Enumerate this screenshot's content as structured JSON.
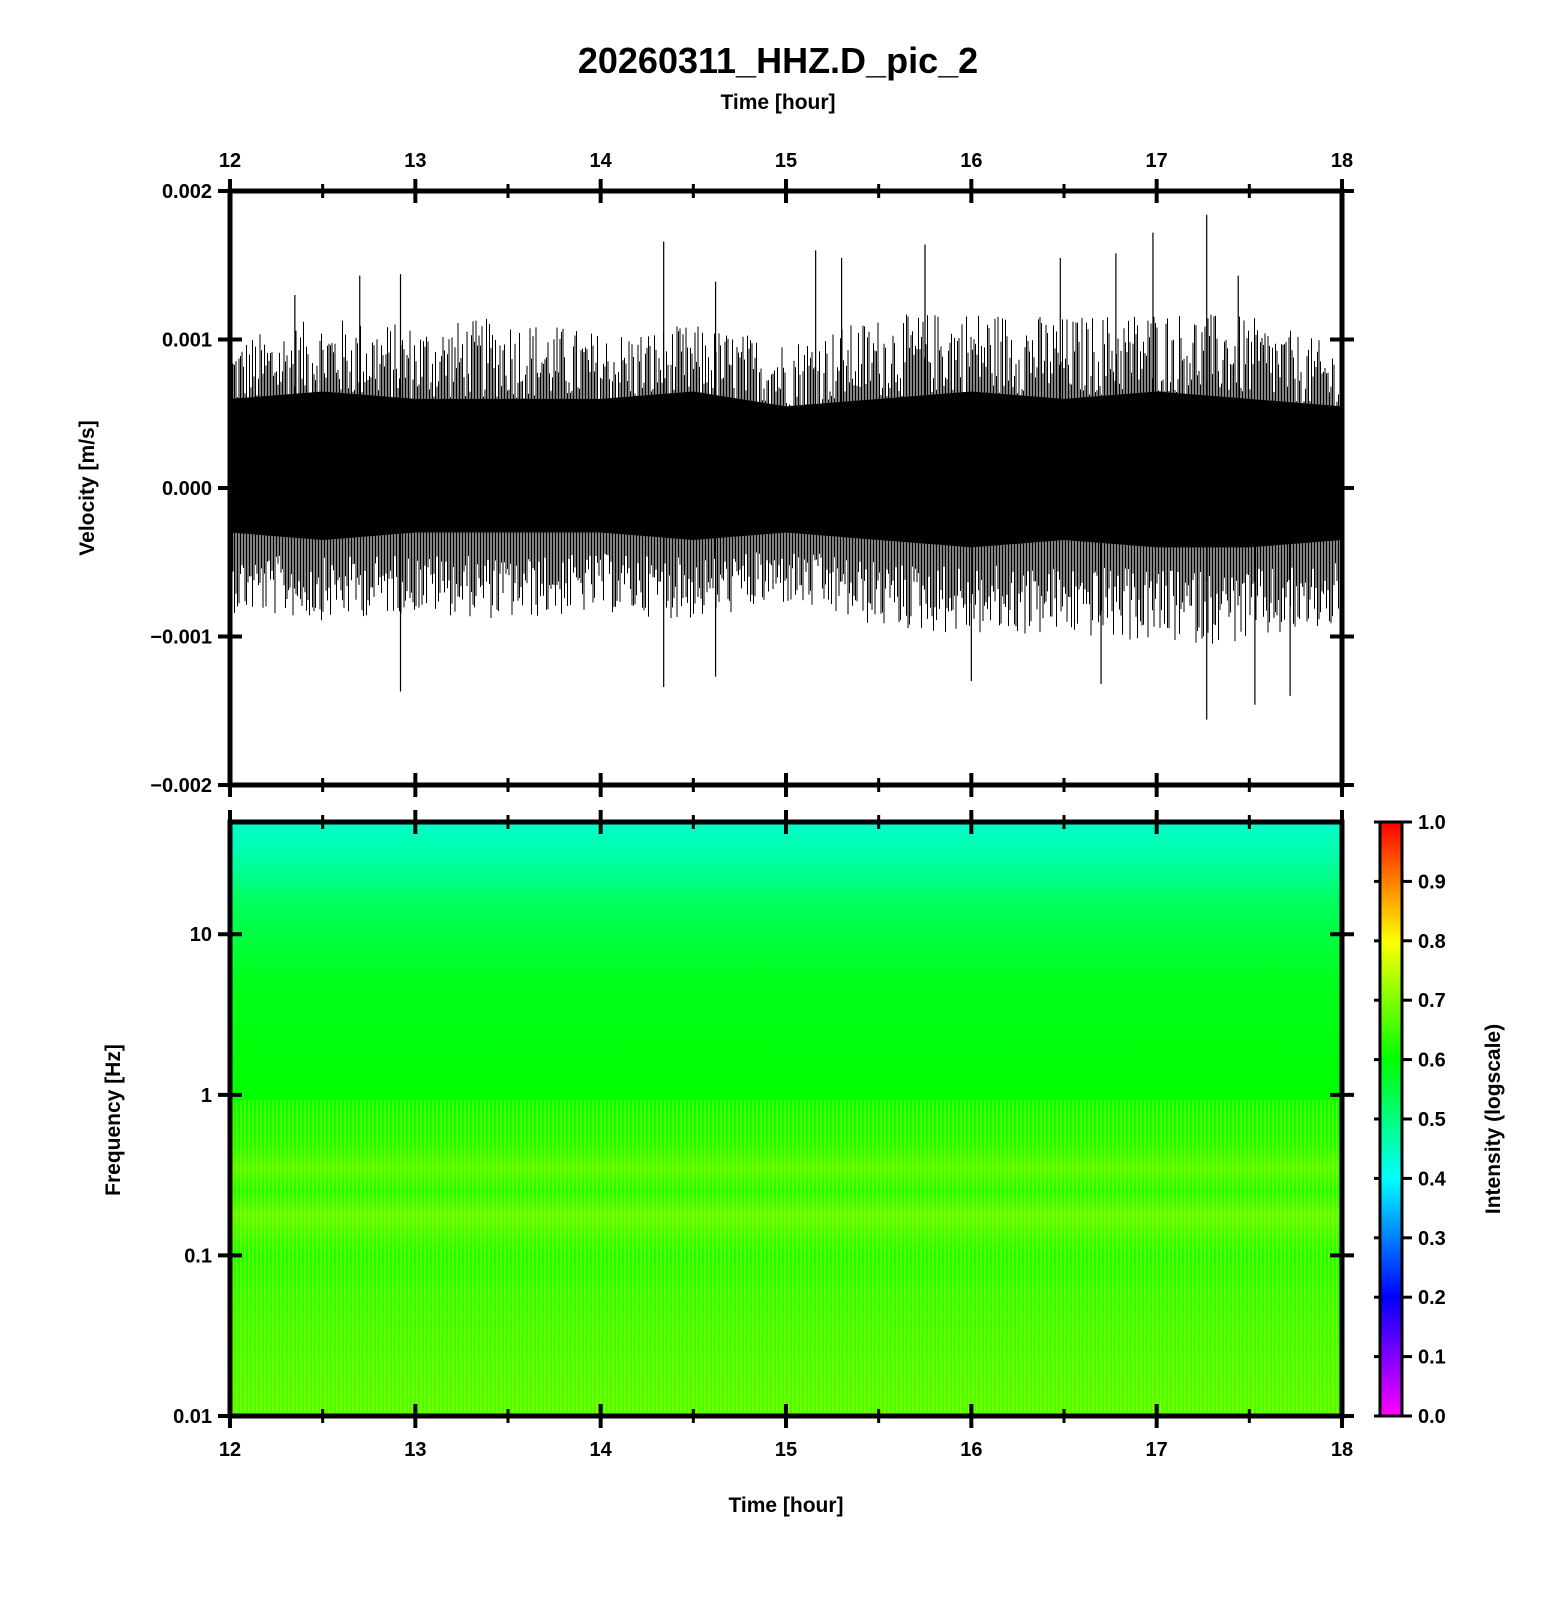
{
  "chart_data": [
    {
      "type": "line",
      "panel": "waveform",
      "title": "20260311_HHZ.D_pic_2",
      "top_xlabel": "Time [hour]",
      "ylabel": "Velocity [m/s]",
      "xlim": [
        12,
        18
      ],
      "ylim": [
        -0.002,
        0.002
      ],
      "x_ticks": [
        "12",
        "13",
        "14",
        "15",
        "16",
        "17",
        "18"
      ],
      "y_ticks": [
        "−0.002",
        "−0.001",
        "0.000",
        "0.001",
        "0.002"
      ],
      "y_tick_values": [
        -0.002,
        -0.001,
        0,
        0.001,
        0.002
      ],
      "series": [
        {
          "x": [
            12.0,
            12.5,
            13.0,
            13.5,
            14.0,
            14.5,
            15.0,
            15.5,
            16.0,
            16.5,
            17.0,
            17.5,
            18.0
          ],
          "envelope_upper": [
            0.00095,
            0.0011,
            0.00105,
            0.0011,
            0.001,
            0.00105,
            0.00095,
            0.0011,
            0.00115,
            0.0011,
            0.00115,
            0.0011,
            0.0009
          ],
          "envelope_lower": [
            -0.0008,
            -0.00085,
            -0.0008,
            -0.00085,
            -0.0008,
            -0.00085,
            -0.00075,
            -0.0009,
            -0.00095,
            -0.00095,
            -0.001,
            -0.001,
            -0.0009
          ],
          "core_upper": [
            0.0006,
            0.00065,
            0.0006,
            0.0006,
            0.0006,
            0.00065,
            0.00055,
            0.0006,
            0.00065,
            0.0006,
            0.00065,
            0.0006,
            0.00055
          ],
          "core_lower": [
            -0.0003,
            -0.00035,
            -0.0003,
            -0.0003,
            -0.0003,
            -0.00035,
            -0.0003,
            -0.00035,
            -0.0004,
            -0.00035,
            -0.0004,
            -0.0004,
            -0.00035
          ],
          "peaks_high": [
            {
              "x": 12.35,
              "y": 0.0013
            },
            {
              "x": 12.7,
              "y": 0.00143
            },
            {
              "x": 12.92,
              "y": 0.00144
            },
            {
              "x": 14.34,
              "y": 0.00166
            },
            {
              "x": 14.62,
              "y": 0.00139
            },
            {
              "x": 15.16,
              "y": 0.0016
            },
            {
              "x": 15.3,
              "y": 0.00155
            },
            {
              "x": 15.75,
              "y": 0.00164
            },
            {
              "x": 16.48,
              "y": 0.00155
            },
            {
              "x": 16.78,
              "y": 0.00158
            },
            {
              "x": 16.98,
              "y": 0.00172
            },
            {
              "x": 17.27,
              "y": 0.00184
            },
            {
              "x": 17.44,
              "y": 0.00143
            }
          ],
          "peaks_low": [
            {
              "x": 12.92,
              "y": -0.00137
            },
            {
              "x": 14.34,
              "y": -0.00134
            },
            {
              "x": 14.62,
              "y": -0.00127
            },
            {
              "x": 16.0,
              "y": -0.0013
            },
            {
              "x": 16.7,
              "y": -0.00132
            },
            {
              "x": 17.27,
              "y": -0.00156
            },
            {
              "x": 17.53,
              "y": -0.00146
            },
            {
              "x": 17.72,
              "y": -0.0014
            }
          ]
        }
      ]
    },
    {
      "type": "heatmap",
      "panel": "spectrogram",
      "xlabel": "Time [hour]",
      "ylabel": "Frequency [Hz]",
      "xlim": [
        12,
        18
      ],
      "ylim": [
        0.01,
        50
      ],
      "y_scale": "log",
      "x_ticks": [
        "12",
        "13",
        "14",
        "15",
        "16",
        "17",
        "18"
      ],
      "y_ticks": [
        "0.01",
        "0.1",
        "1",
        "10"
      ],
      "y_tick_values": [
        0.01,
        0.1,
        1,
        10
      ],
      "colorbar": {
        "label": "Intensity (logscale)",
        "range": [
          0,
          1
        ],
        "ticks": [
          "0.0",
          "0.1",
          "0.2",
          "0.3",
          "0.4",
          "0.5",
          "0.6",
          "0.7",
          "0.8",
          "0.9",
          "1.0"
        ],
        "colormap": [
          "#ff00ff",
          "#0000ff",
          "#00ffff",
          "#00ff00",
          "#ffff00",
          "#ff0000"
        ]
      },
      "intensity_profile": [
        {
          "freq": 50,
          "intensity": 0.44
        },
        {
          "freq": 30,
          "intensity": 0.47
        },
        {
          "freq": 15,
          "intensity": 0.53
        },
        {
          "freq": 5,
          "intensity": 0.58
        },
        {
          "freq": 1,
          "intensity": 0.6
        },
        {
          "freq": 0.5,
          "intensity": 0.62
        },
        {
          "freq": 0.35,
          "intensity": 0.66
        },
        {
          "freq": 0.25,
          "intensity": 0.62
        },
        {
          "freq": 0.18,
          "intensity": 0.67
        },
        {
          "freq": 0.1,
          "intensity": 0.62
        },
        {
          "freq": 0.05,
          "intensity": 0.64
        },
        {
          "freq": 0.01,
          "intensity": 0.66
        }
      ]
    }
  ]
}
